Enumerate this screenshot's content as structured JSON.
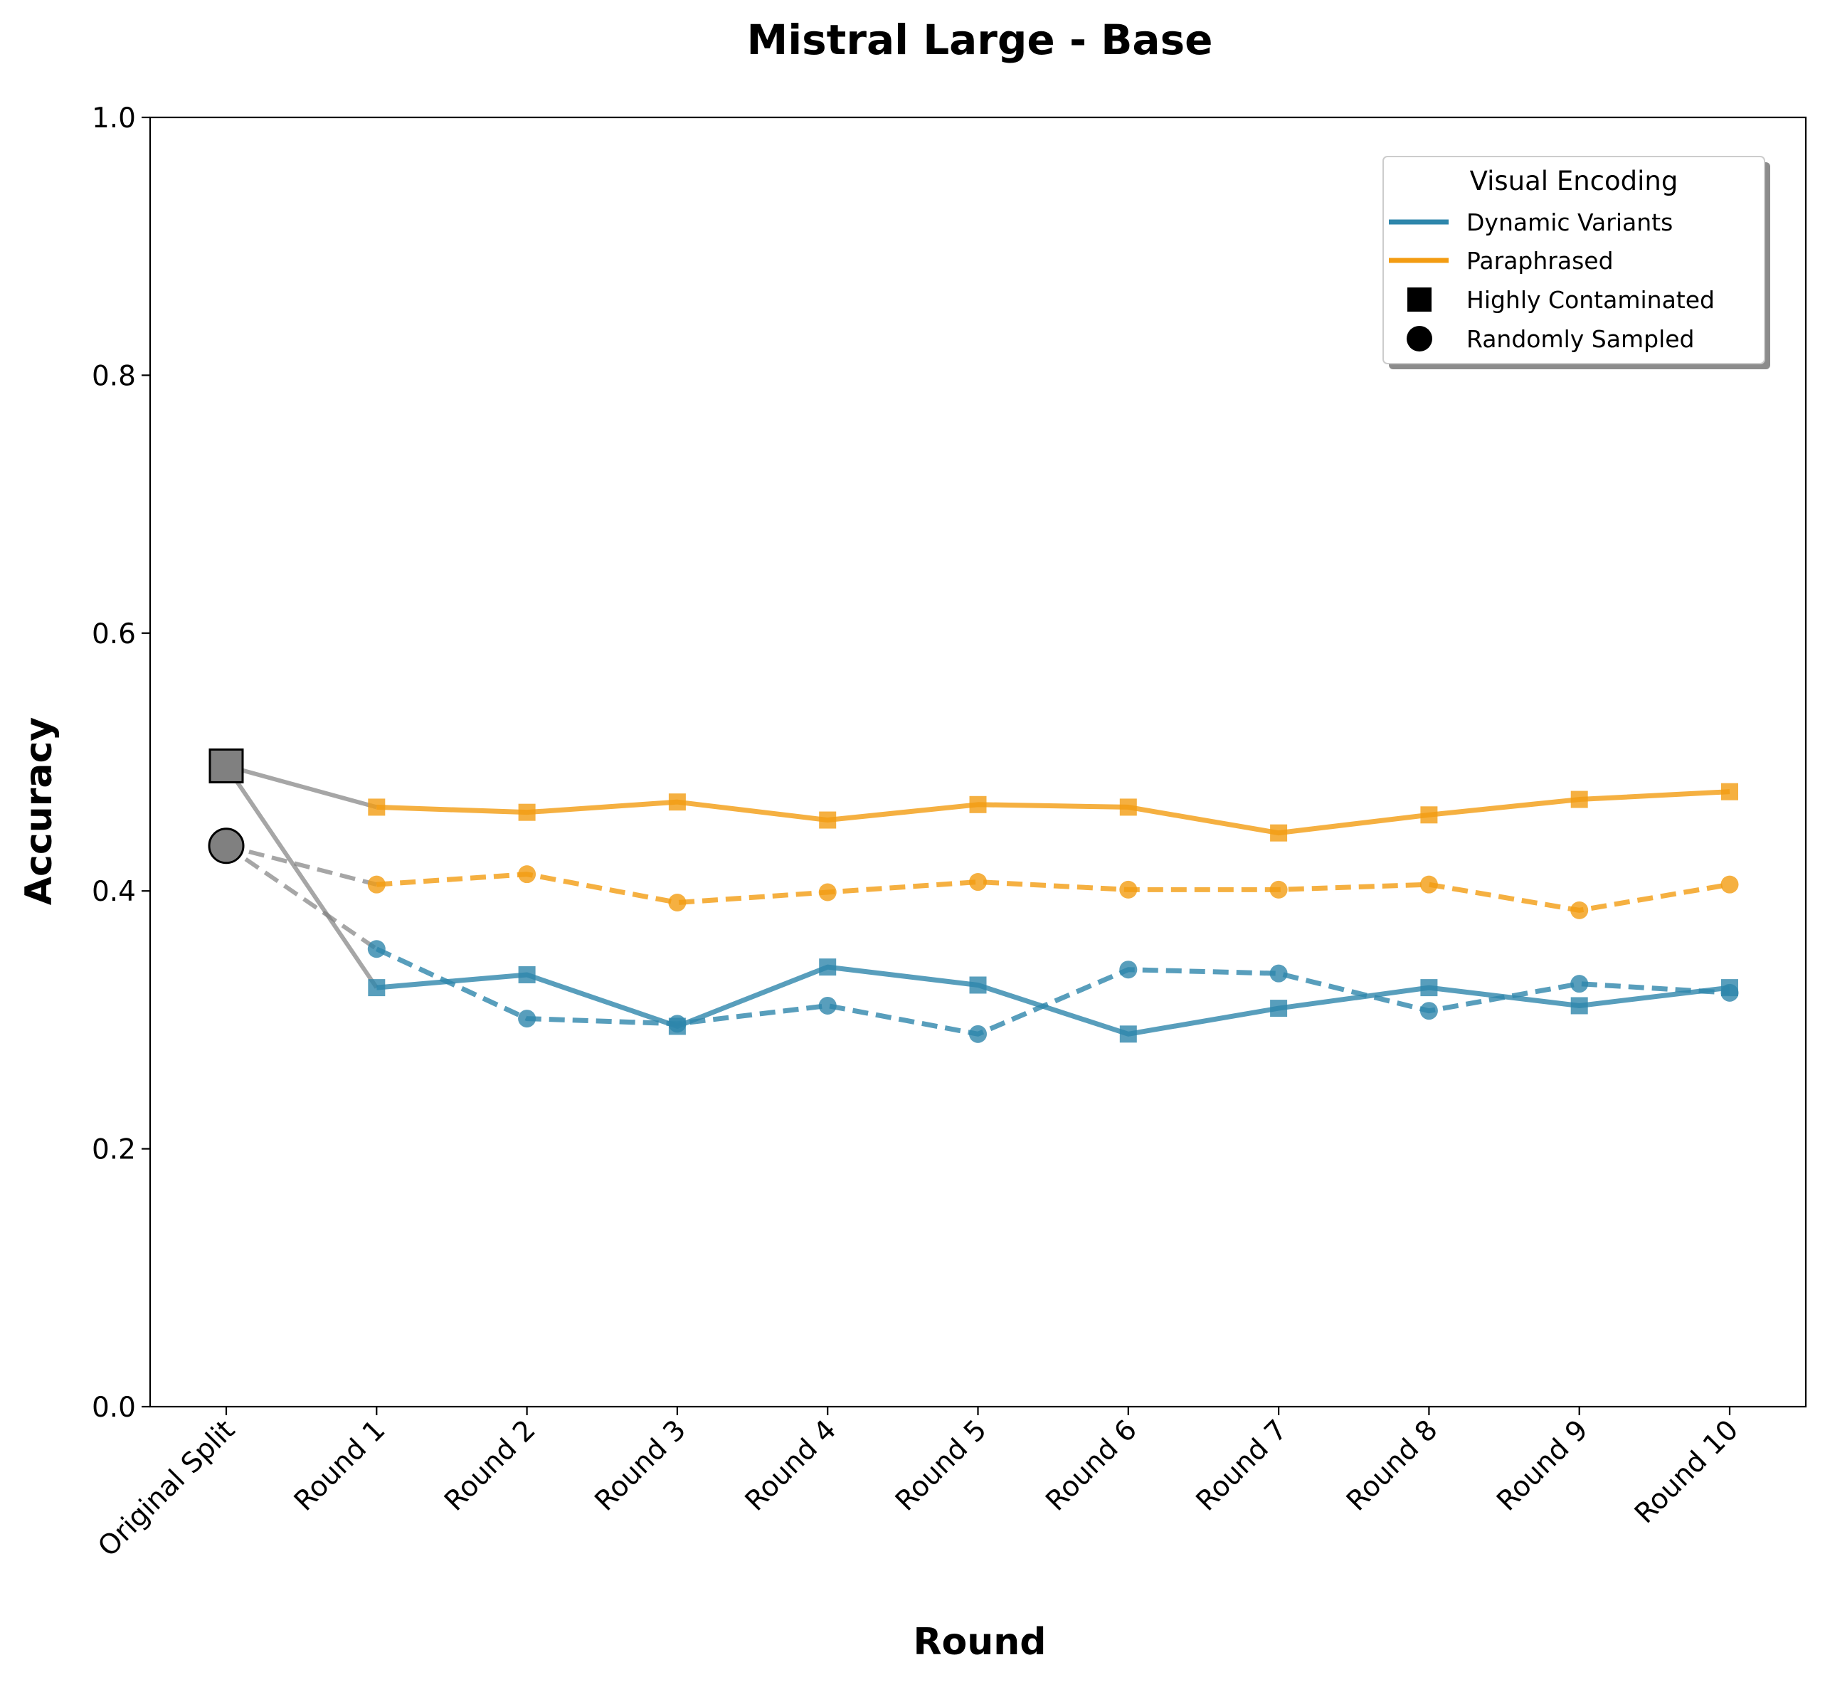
{
  "chart_data": {
    "type": "line",
    "title": "Mistral Large - Base",
    "xlabel": "Round",
    "ylabel": "Accuracy",
    "ylim": [
      0,
      1
    ],
    "yticks": [
      "0.0",
      "0.2",
      "0.4",
      "0.6",
      "0.8",
      "1.0"
    ],
    "categories": [
      "Original Split",
      "Round 1",
      "Round 2",
      "Round 3",
      "Round 4",
      "Round 5",
      "Round 6",
      "Round 7",
      "Round 8",
      "Round 9",
      "Round 10"
    ],
    "grid": false,
    "legend": {
      "title": "Visual Encoding",
      "placement": "top-right",
      "entries": [
        {
          "label": "Dynamic Variants",
          "kind": "line",
          "color": "#2e86ab"
        },
        {
          "label": "Paraphrased",
          "kind": "line",
          "color": "#f39c12"
        },
        {
          "label": "Highly Contaminated",
          "kind": "square-marker",
          "color": "#000000"
        },
        {
          "label": "Randomly Sampled",
          "kind": "circle-marker",
          "color": "#000000"
        }
      ]
    },
    "original_split": {
      "color": "#808080",
      "highly_contaminated": 0.497,
      "randomly_sampled": 0.435
    },
    "series": [
      {
        "variant": "Dynamic Variants",
        "sample": "Highly Contaminated",
        "color": "#2e86ab",
        "marker": "square",
        "linestyle": "solid",
        "values": [
          0.497,
          0.325,
          0.335,
          0.295,
          0.341,
          0.327,
          0.289,
          0.309,
          0.325,
          0.311,
          0.325
        ]
      },
      {
        "variant": "Dynamic Variants",
        "sample": "Randomly Sampled",
        "color": "#2e86ab",
        "marker": "circle",
        "linestyle": "dashed",
        "values": [
          0.435,
          0.355,
          0.301,
          0.297,
          0.311,
          0.289,
          0.339,
          0.336,
          0.307,
          0.328,
          0.321
        ]
      },
      {
        "variant": "Paraphrased",
        "sample": "Highly Contaminated",
        "color": "#f39c12",
        "marker": "square",
        "linestyle": "solid",
        "values": [
          0.497,
          0.465,
          0.461,
          0.469,
          0.455,
          0.467,
          0.465,
          0.445,
          0.459,
          0.471,
          0.477
        ]
      },
      {
        "variant": "Paraphrased",
        "sample": "Randomly Sampled",
        "color": "#f39c12",
        "marker": "circle",
        "linestyle": "dashed",
        "values": [
          0.435,
          0.405,
          0.413,
          0.391,
          0.399,
          0.407,
          0.401,
          0.401,
          0.405,
          0.385,
          0.405
        ]
      }
    ]
  }
}
